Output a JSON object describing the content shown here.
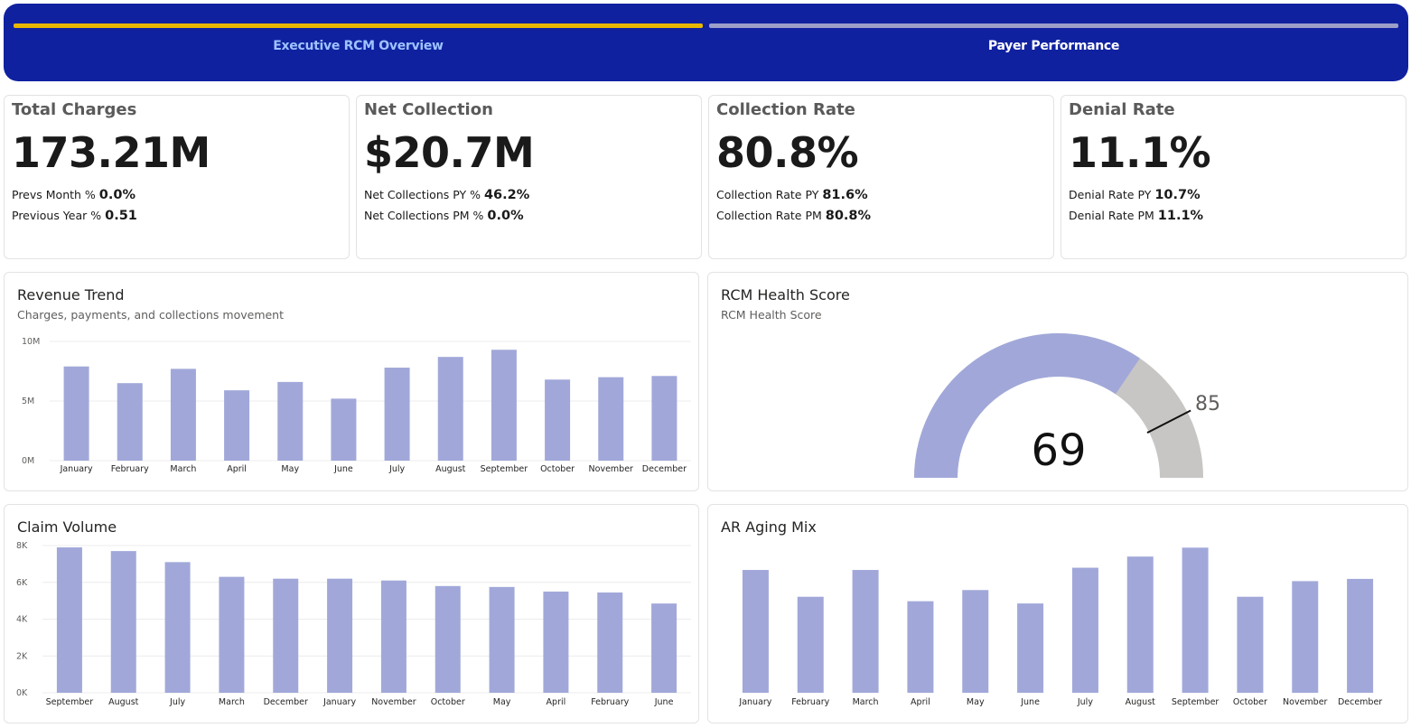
{
  "nav": {
    "tabs": [
      {
        "label": "Executive RCM Overview",
        "active": true
      },
      {
        "label": "Payer Performance",
        "active": false
      }
    ],
    "colors": {
      "background": "#1021a0",
      "active_indicator": "#e8b800",
      "inactive_indicator": "#9c9fc9"
    }
  },
  "kpis": [
    {
      "title": "Total Charges",
      "value": "173.21M",
      "sub1_label": "Prevs Month %",
      "sub1_value": "0.0%",
      "sub2_label": "Previous Year %",
      "sub2_value": "0.51"
    },
    {
      "title": "Net Collection",
      "value": "$20.7M",
      "sub1_label": "Net Collections PY %",
      "sub1_value": "46.2%",
      "sub2_label": "Net Collections PM %",
      "sub2_value": "0.0%"
    },
    {
      "title": "Collection Rate",
      "value": "80.8%",
      "sub1_label": "Collection Rate PY",
      "sub1_value": "81.6%",
      "sub2_label": "Collection Rate PM",
      "sub2_value": "80.8%"
    },
    {
      "title": "Denial Rate",
      "value": "11.1%",
      "sub1_label": "Denial Rate PY",
      "sub1_value": "10.7%",
      "sub2_label": "Denial Rate PM",
      "sub2_value": "11.1%"
    }
  ],
  "revenue_trend": {
    "title": "Revenue Trend",
    "subtitle": "Charges, payments, and collections movement"
  },
  "health": {
    "title": "RCM Health Score",
    "subtitle": "RCM Health Score",
    "value_label": "69",
    "target_label": "85"
  },
  "claims": {
    "title": "Claim Volume"
  },
  "aging": {
    "title": "AR Aging Mix"
  },
  "chart_data": [
    {
      "type": "bar",
      "title": "Revenue Trend",
      "categories": [
        "January",
        "February",
        "March",
        "April",
        "May",
        "June",
        "July",
        "August",
        "September",
        "October",
        "November",
        "December"
      ],
      "values": [
        7.9,
        6.5,
        7.7,
        5.9,
        6.6,
        5.2,
        7.8,
        8.7,
        9.3,
        6.8,
        7.0,
        7.1
      ],
      "ylim": [
        0,
        10
      ],
      "yticks": [
        "0M",
        "5M",
        "10M"
      ],
      "ytick_values": [
        0,
        5,
        10
      ],
      "color": "#a1a8d9",
      "grid": true
    },
    {
      "type": "gauge",
      "title": "RCM Health Score",
      "value": 69,
      "target": 85,
      "min": 0,
      "max": 100,
      "fill_color": "#a1a8d9",
      "track_color": "#c8c6c4"
    },
    {
      "type": "bar",
      "title": "Claim Volume",
      "categories": [
        "September",
        "August",
        "July",
        "March",
        "December",
        "January",
        "November",
        "October",
        "May",
        "April",
        "February",
        "June"
      ],
      "values": [
        7900,
        7700,
        7100,
        6300,
        6200,
        6200,
        6100,
        5800,
        5750,
        5500,
        5450,
        4850
      ],
      "ylim": [
        0,
        8000
      ],
      "yticks": [
        "0K",
        "2K",
        "4K",
        "6K",
        "8K"
      ],
      "ytick_values": [
        0,
        2000,
        4000,
        6000,
        8000
      ],
      "color": "#a1a8d9",
      "grid": true
    },
    {
      "type": "bar",
      "title": "AR Aging Mix",
      "categories": [
        "January",
        "February",
        "March",
        "April",
        "May",
        "June",
        "July",
        "August",
        "September",
        "October",
        "November",
        "December"
      ],
      "values": [
        5.5,
        4.3,
        5.5,
        4.1,
        4.6,
        4.0,
        5.6,
        6.1,
        6.5,
        4.3,
        5.0,
        5.1
      ],
      "ylim": [
        0,
        7.2
      ],
      "color": "#a1a8d9",
      "grid": false
    }
  ]
}
